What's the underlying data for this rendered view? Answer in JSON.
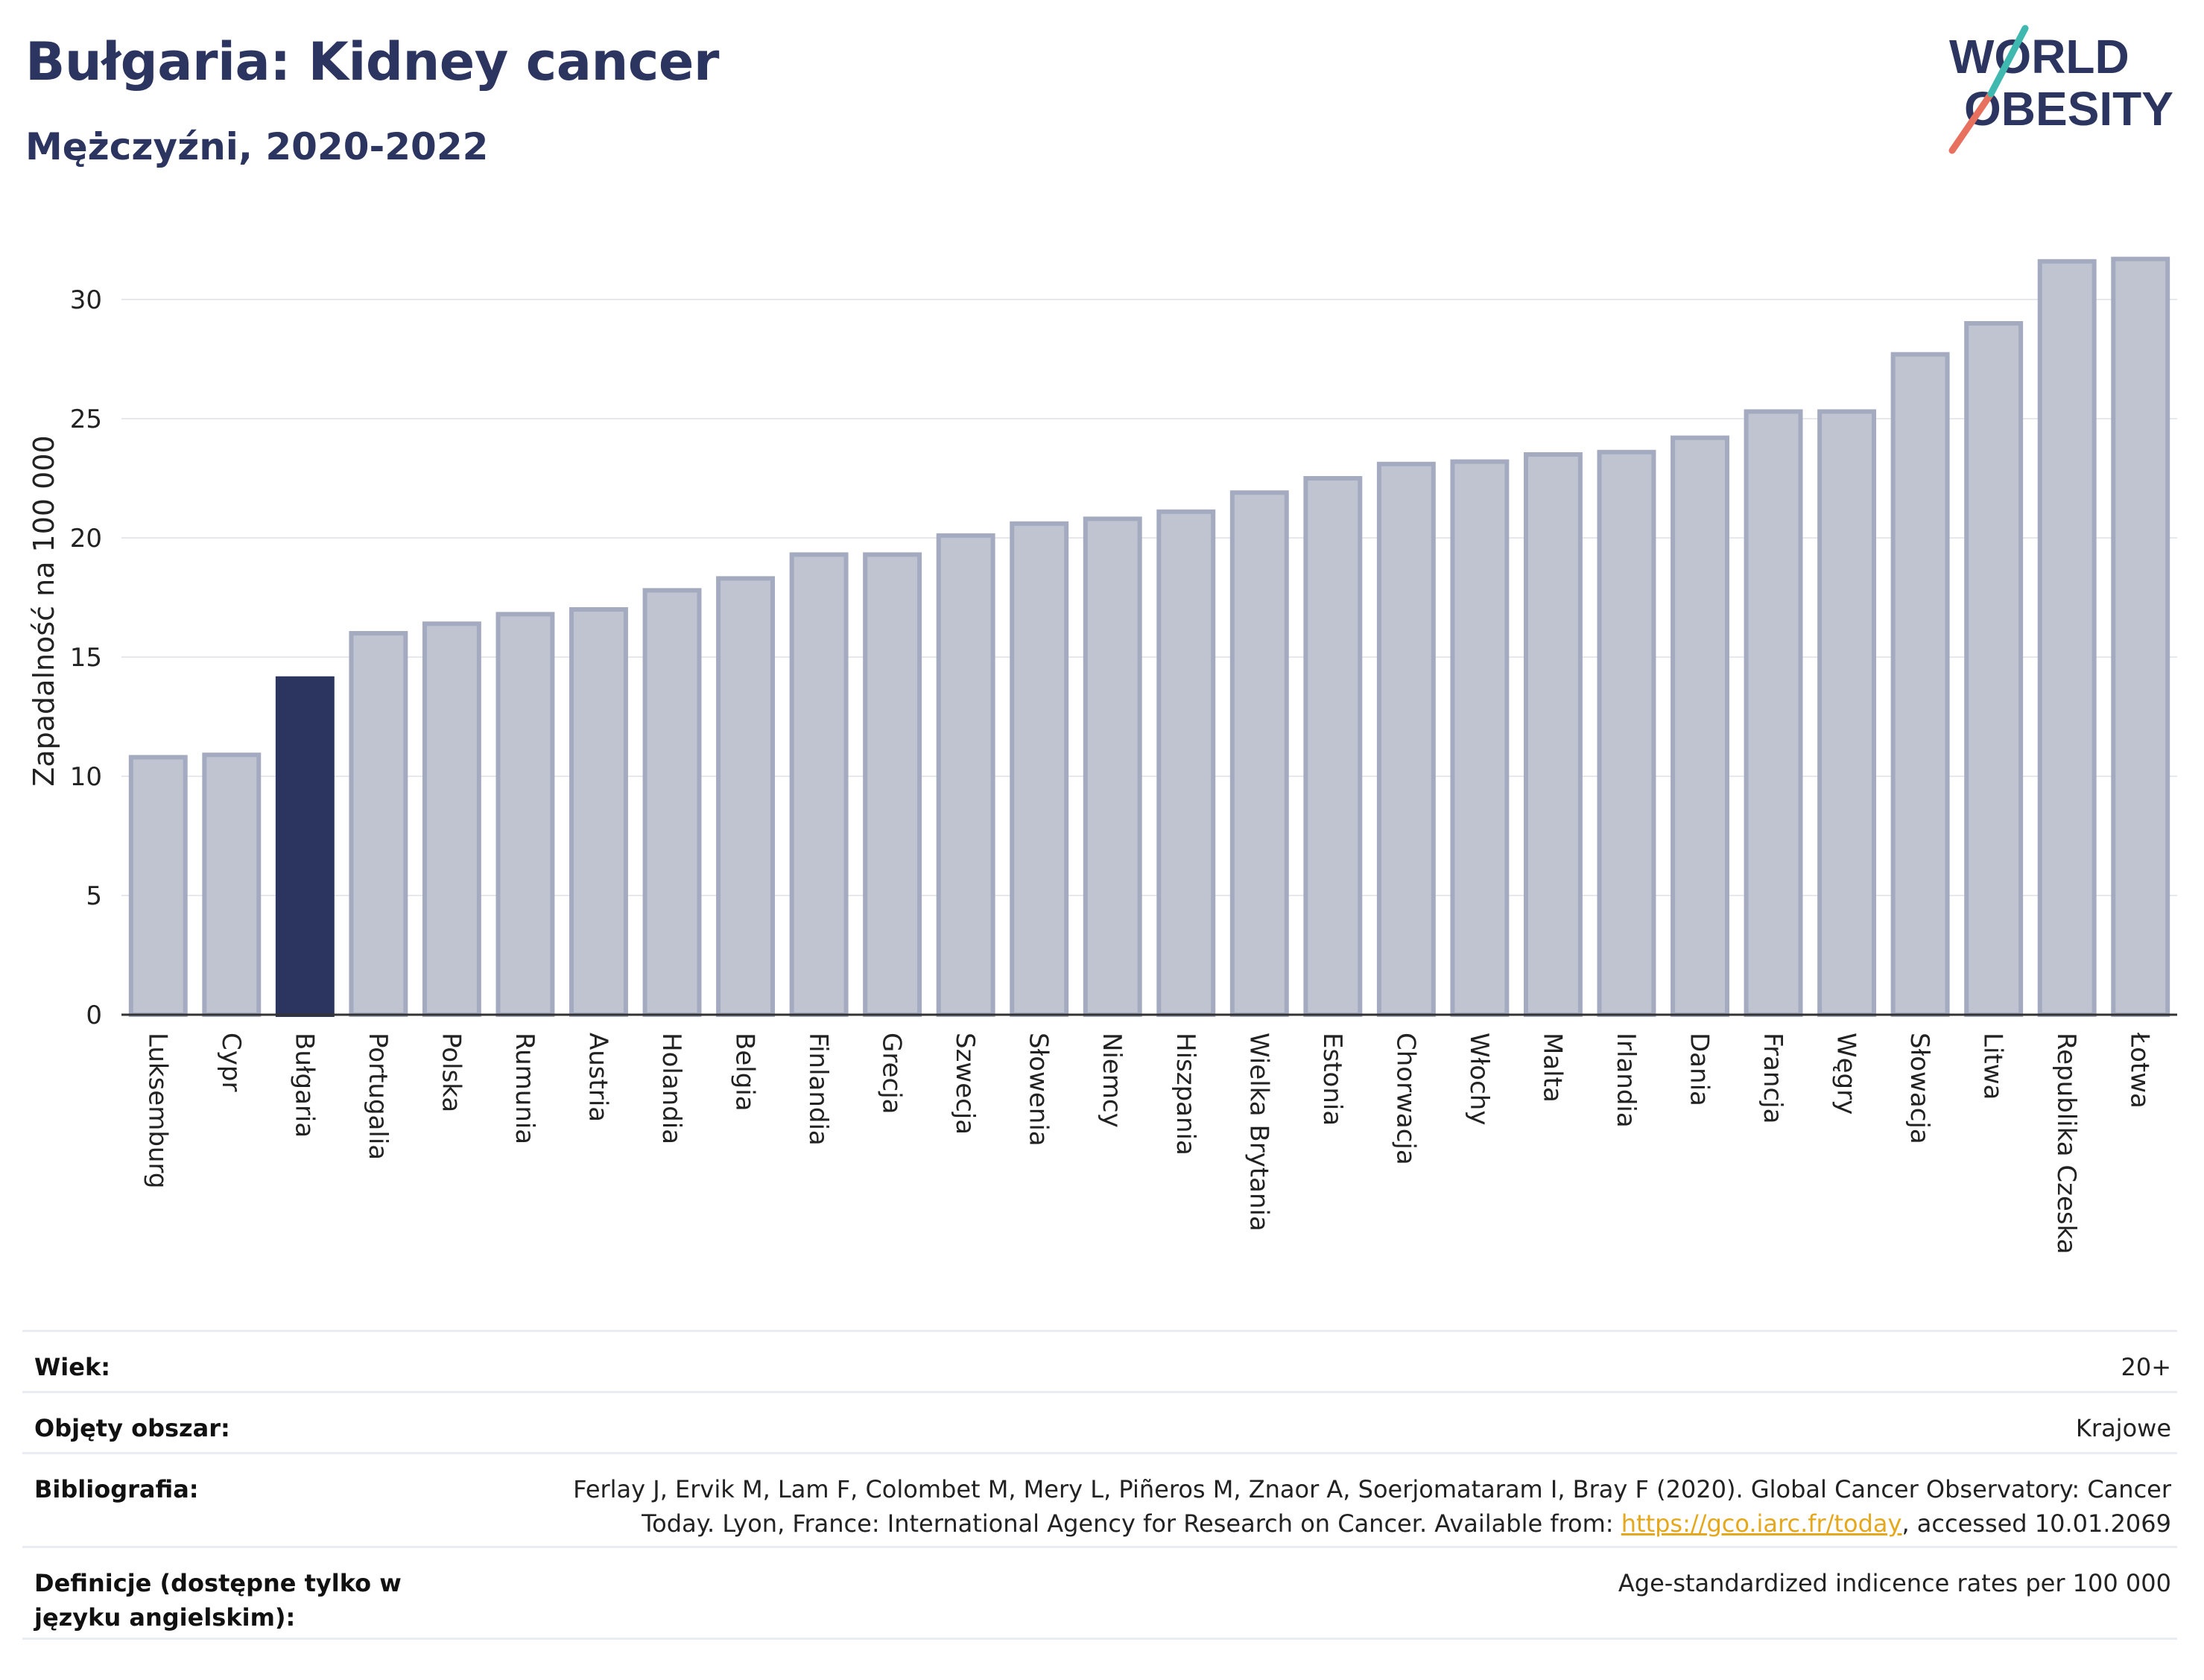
{
  "header": {
    "title": "Bułgaria: Kidney cancer",
    "subtitle": "Mężczyźni, 2020-2022"
  },
  "logo": {
    "line1": "WORLD",
    "line2": "OBESITY"
  },
  "colors": {
    "highlight": "#2b3560",
    "bar": "#c0c4d1",
    "bar_edge": "#a4abc0",
    "title": "#2b3560",
    "link": "#e5a71c"
  },
  "chart_data": {
    "type": "bar",
    "ylabel": "Zapadalność na 100 000",
    "ylim": [
      0,
      32.5
    ],
    "yticks": [
      0,
      5,
      10,
      15,
      20,
      25,
      30
    ],
    "grid": true,
    "highlight": "Bułgaria",
    "categories": [
      "Luksemburg",
      "Cypr",
      "Bułgaria",
      "Portugalia",
      "Polska",
      "Rumunia",
      "Austria",
      "Holandia",
      "Belgia",
      "Finlandia",
      "Grecja",
      "Szwecja",
      "Słowenia",
      "Niemcy",
      "Hiszpania",
      "Wielka Brytania",
      "Estonia",
      "Chorwacja",
      "Włochy",
      "Malta",
      "Irlandia",
      "Dania",
      "Francja",
      "Węgry",
      "Słowacja",
      "Litwa",
      "Republika Czeska",
      "Łotwa"
    ],
    "values": [
      10.8,
      10.9,
      14.1,
      16.0,
      16.4,
      16.8,
      17.0,
      17.8,
      18.3,
      19.3,
      19.3,
      20.1,
      20.6,
      20.8,
      21.1,
      21.9,
      22.5,
      23.1,
      23.2,
      23.5,
      23.6,
      24.2,
      25.3,
      25.3,
      27.7,
      29.0,
      31.6,
      31.7
    ]
  },
  "meta": {
    "age_label": "Wiek:",
    "age_value": "20+",
    "area_label": "Objęty obszar:",
    "area_value": "Krajowe",
    "bib_label": "Bibliografia:",
    "bib_text_1": "Ferlay J, Ervik M, Lam F, Colombet M, Mery L, Piñeros M, Znaor A, Soerjomataram I, Bray F (2020). Global Cancer Observatory: Cancer",
    "bib_text_2": "Today. Lyon, France: International Agency for Research on Cancer. Available from: ",
    "bib_link": "https://gco.iarc.fr/today",
    "bib_text_3": ", accessed 10.01.2069",
    "def_label": "Definicje (dostępne tylko w języku angielskim):",
    "def_value": "Age-standardized indicence rates per 100 000"
  }
}
